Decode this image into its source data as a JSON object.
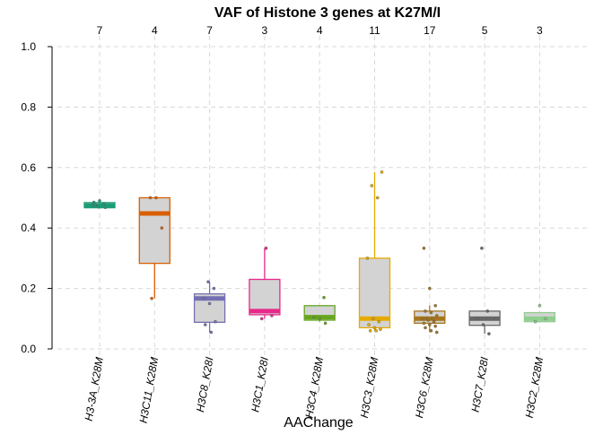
{
  "chart_data": {
    "type": "box",
    "title": "VAF of Histone 3 genes at K27M/I",
    "xlabel": "AAChange",
    "ylabel": "",
    "ylim": [
      0,
      1.0
    ],
    "yticks": [
      "0.0",
      "0.2",
      "0.4",
      "0.6",
      "0.8",
      "1.0"
    ],
    "grid": true,
    "categories": [
      "H3-3A_K28M",
      "H3C11_K28M",
      "H3C8_K28I",
      "H3C1_K28I",
      "H3C4_K28M",
      "H3C3_K28M",
      "H3C6_K28M",
      "H3C7_K28I",
      "H3C2_K28M"
    ],
    "counts": [
      "7",
      "4",
      "7",
      "3",
      "4",
      "11",
      "17",
      "5",
      "3"
    ],
    "colors": [
      "#1b9e77",
      "#d95f02",
      "#7570b3",
      "#e7298a",
      "#66a61e",
      "#e6ab02",
      "#a6761d",
      "#666666",
      "#8fce8f"
    ],
    "box_fill": "#d3d3d3",
    "boxes": [
      {
        "min": 0.465,
        "q1": 0.467,
        "median": 0.474,
        "q3": 0.484,
        "max": 0.488
      },
      {
        "min": 0.167,
        "q1": 0.283,
        "median": 0.448,
        "q3": 0.5,
        "max": 0.5
      },
      {
        "min": 0.055,
        "q1": 0.088,
        "median": 0.167,
        "q3": 0.182,
        "max": 0.222
      },
      {
        "min": 0.1,
        "q1": 0.113,
        "median": 0.125,
        "q3": 0.23,
        "max": 0.333
      },
      {
        "min": 0.09,
        "q1": 0.095,
        "median": 0.105,
        "q3": 0.143,
        "max": 0.143
      },
      {
        "min": 0.06,
        "q1": 0.07,
        "median": 0.1,
        "q3": 0.3,
        "max": 0.585
      },
      {
        "min": 0.055,
        "q1": 0.085,
        "median": 0.1,
        "q3": 0.125,
        "max": 0.143
      },
      {
        "min": 0.05,
        "q1": 0.078,
        "median": 0.1,
        "q3": 0.125,
        "max": 0.125
      },
      {
        "min": 0.09,
        "q1": 0.09,
        "median": 0.1,
        "q3": 0.12,
        "max": 0.12
      }
    ],
    "points": [
      [
        0.475,
        0.47,
        0.48,
        0.485,
        0.49,
        0.468,
        0.476
      ],
      [
        0.5,
        0.5,
        0.4,
        0.167
      ],
      [
        0.222,
        0.2,
        0.167,
        0.15,
        0.09,
        0.08,
        0.055
      ],
      [
        0.333,
        0.11,
        0.1
      ],
      [
        0.17,
        0.105,
        0.1,
        0.085
      ],
      [
        0.585,
        0.54,
        0.5,
        0.3,
        0.1,
        0.09,
        0.08,
        0.07,
        0.065,
        0.06,
        0.06
      ],
      [
        0.333,
        0.2,
        0.143,
        0.125,
        0.12,
        0.11,
        0.1,
        0.1,
        0.1,
        0.095,
        0.09,
        0.085,
        0.08,
        0.075,
        0.07,
        0.06,
        0.055
      ],
      [
        0.333,
        0.125,
        0.1,
        0.08,
        0.05
      ],
      [
        0.143,
        0.1,
        0.09
      ]
    ]
  }
}
